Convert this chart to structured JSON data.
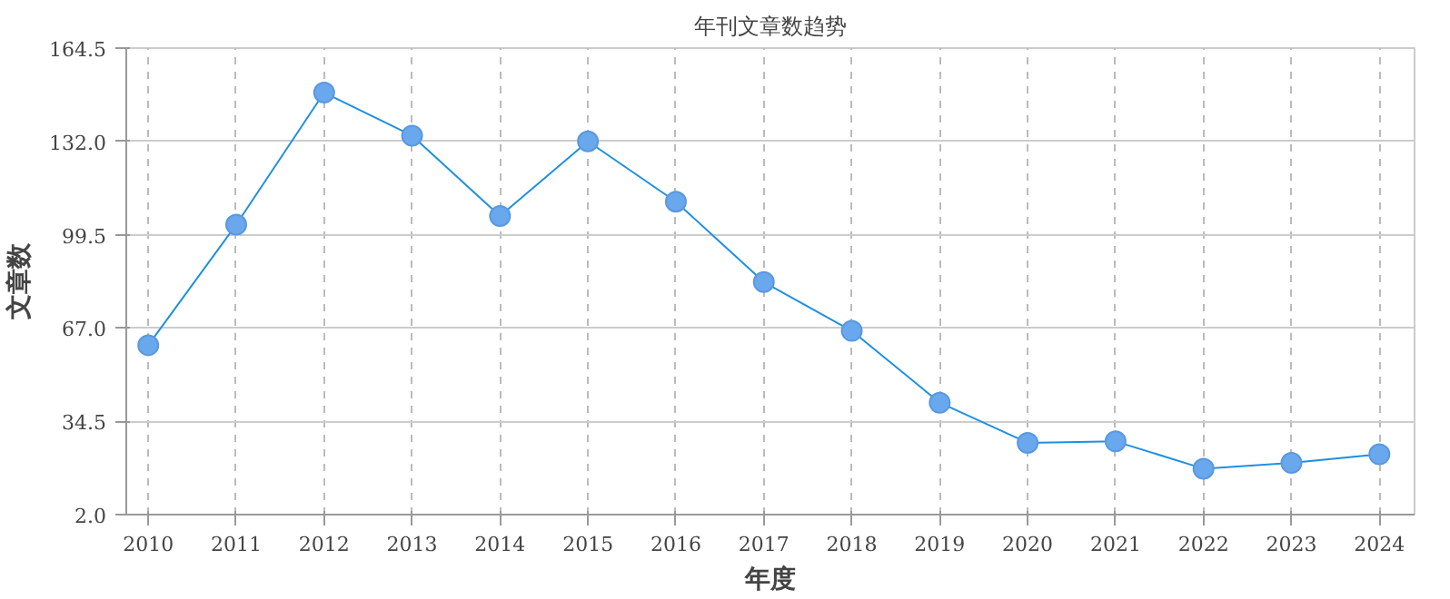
{
  "chart_data": {
    "type": "line",
    "title": "年刊文章数趋势",
    "xlabel": "年度",
    "ylabel": "文章数",
    "categories": [
      "2010",
      "2011",
      "2012",
      "2013",
      "2014",
      "2015",
      "2016",
      "2017",
      "2018",
      "2019",
      "2020",
      "2021",
      "2022",
      "2023",
      "2024"
    ],
    "series": [
      {
        "color": "#1e90e0",
        "values": [
          61,
          103,
          149,
          134,
          106,
          132,
          111,
          83,
          66,
          41,
          27,
          27.5,
          18,
          20,
          23
        ]
      }
    ],
    "ylim": [
      2.0,
      164.5
    ],
    "yticks": [
      {
        "value": 2.0,
        "label": "2.0"
      },
      {
        "value": 34.5,
        "label": "34.5"
      },
      {
        "value": 67.0,
        "label": "67.0"
      },
      {
        "value": 99.5,
        "label": "99.5"
      },
      {
        "value": 132.0,
        "label": "132.0"
      },
      {
        "value": 164.5,
        "label": "164.5"
      }
    ],
    "grid": true,
    "marker": "circle",
    "line_style": "solid"
  }
}
